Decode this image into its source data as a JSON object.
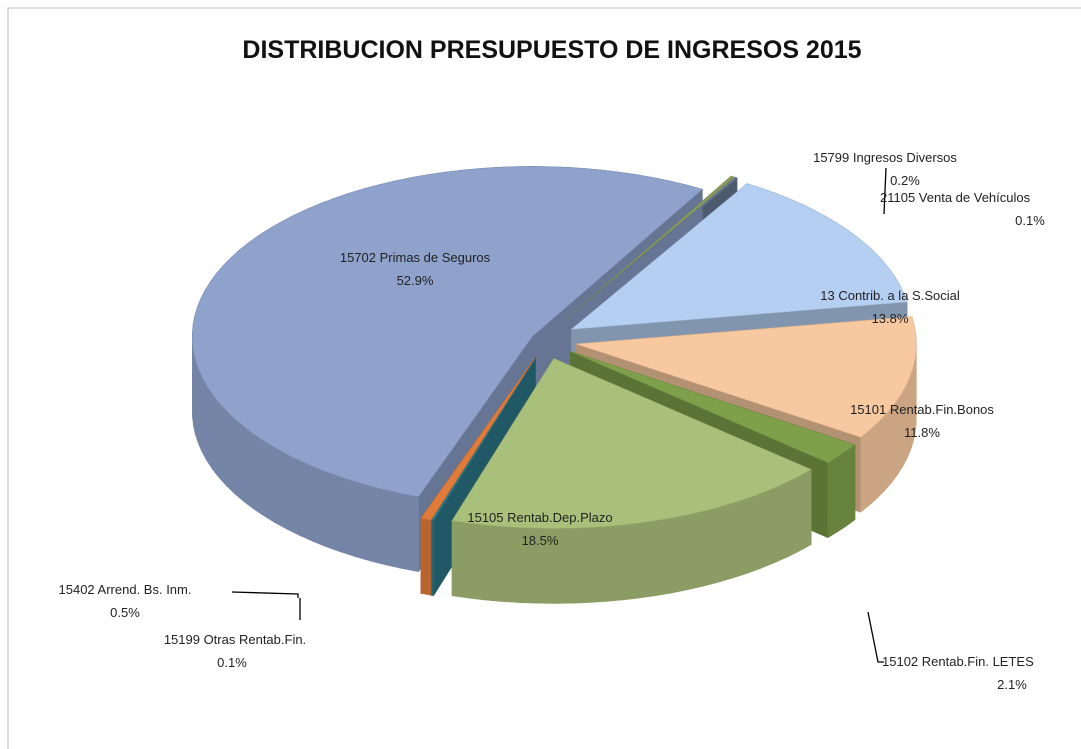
{
  "chart_data": {
    "type": "pie3d",
    "title": "DISTRIBUCION PRESUPUESTO DE INGRESOS 2015",
    "categories": [
      "15702 Primas de Seguros",
      "15799 Ingresos Diversos",
      "21105 Venta de Vehículos",
      "13 Contrib. a la S.Social",
      "15101 Rentab.Fin.Bonos",
      "15102 Rentab.Fin. LETES",
      "15105 Rentab.Dep.Plazo",
      "15199 Otras Rentab.Fin.",
      "15402 Arrend. Bs. Inm."
    ],
    "values": [
      52.9,
      0.2,
      0.1,
      13.8,
      11.8,
      2.1,
      18.5,
      0.1,
      0.5
    ],
    "value_labels": [
      "52.9%",
      "0.2%",
      "0.1%",
      "13.8%",
      "11.8%",
      "2.1%",
      "18.5%",
      "0.1%",
      "0.5%"
    ],
    "colors": [
      "#8ea2cc",
      "#8a9a5b",
      "#6c7f99",
      "#b4cff2",
      "#f8c9a0",
      "#7fa04a",
      "#a9c07a",
      "#2e7a8c",
      "#e07b39"
    ]
  }
}
